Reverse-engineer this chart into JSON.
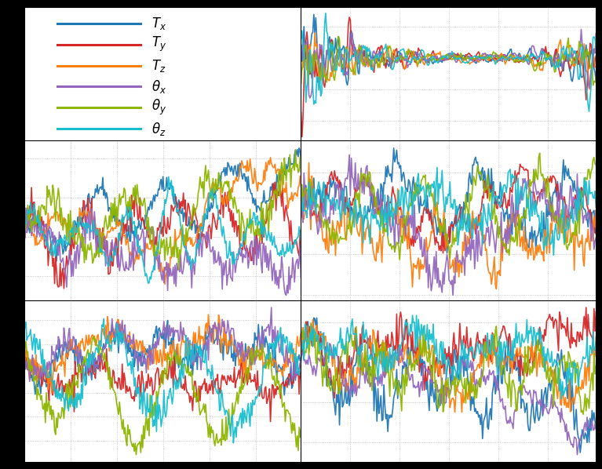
{
  "colors": [
    "#1f77b4",
    "#d62728",
    "#ff7f0e",
    "#9467bd",
    "#8db600",
    "#17becf"
  ],
  "labels": [
    "$T_x$",
    "$T_y$",
    "$T_z$",
    "$\\theta_x$",
    "$\\theta_y$",
    "$\\theta_z$"
  ],
  "n_points": 300,
  "background": "#000000",
  "panel_bg": "#ffffff",
  "grid_color": "#aaaaaa",
  "line_width": 1.2
}
